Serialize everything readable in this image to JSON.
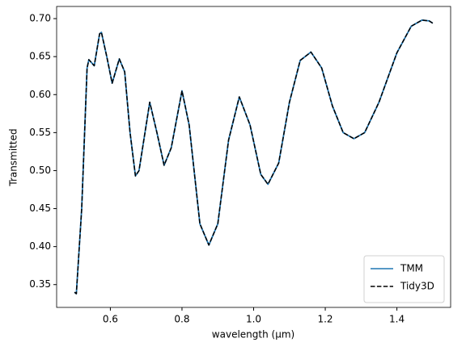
{
  "chart_data": {
    "type": "line",
    "x_label": "wavelength (μm)",
    "y_label": "Transmitted",
    "x": [
      0.5,
      0.505,
      0.52,
      0.535,
      0.54,
      0.555,
      0.57,
      0.575,
      0.59,
      0.605,
      0.625,
      0.64,
      0.655,
      0.67,
      0.68,
      0.71,
      0.73,
      0.75,
      0.77,
      0.8,
      0.82,
      0.85,
      0.875,
      0.9,
      0.93,
      0.96,
      0.99,
      1.02,
      1.04,
      1.07,
      1.1,
      1.13,
      1.16,
      1.19,
      1.22,
      1.25,
      1.28,
      1.31,
      1.35,
      1.4,
      1.44,
      1.47,
      1.49,
      1.5
    ],
    "series": [
      {
        "name": "TMM",
        "color": "#1f77b4",
        "dash": "solid",
        "values": [
          0.34,
          0.338,
          0.45,
          0.635,
          0.646,
          0.638,
          0.68,
          0.682,
          0.65,
          0.615,
          0.647,
          0.63,
          0.55,
          0.493,
          0.5,
          0.59,
          0.55,
          0.507,
          0.53,
          0.605,
          0.56,
          0.43,
          0.402,
          0.43,
          0.54,
          0.597,
          0.56,
          0.495,
          0.482,
          0.51,
          0.59,
          0.645,
          0.656,
          0.635,
          0.585,
          0.55,
          0.542,
          0.55,
          0.59,
          0.655,
          0.69,
          0.698,
          0.697,
          0.694
        ]
      },
      {
        "name": "Tidy3D",
        "color": "#000000",
        "dash": "dashed",
        "values": [
          0.34,
          0.338,
          0.45,
          0.635,
          0.646,
          0.638,
          0.68,
          0.682,
          0.65,
          0.615,
          0.647,
          0.63,
          0.55,
          0.493,
          0.5,
          0.59,
          0.55,
          0.507,
          0.53,
          0.605,
          0.56,
          0.43,
          0.402,
          0.43,
          0.54,
          0.597,
          0.56,
          0.495,
          0.482,
          0.51,
          0.59,
          0.645,
          0.656,
          0.635,
          0.585,
          0.55,
          0.542,
          0.55,
          0.59,
          0.655,
          0.69,
          0.698,
          0.697,
          0.694
        ]
      }
    ],
    "xlim": [
      0.45,
      1.55
    ],
    "ylim": [
      0.32,
      0.716
    ],
    "xticks": [
      0.6,
      0.8,
      {
        "value": 1,
        "label": "1.0"
      },
      1.2,
      1.4
    ],
    "yticks": [
      0.35,
      {
        "value": 0.4,
        "label": "0.40"
      },
      0.45,
      {
        "value": 0.5,
        "label": "0.50"
      },
      0.55,
      {
        "value": 0.6,
        "label": "0.60"
      },
      0.65,
      {
        "value": 0.7,
        "label": "0.70"
      }
    ],
    "grid": false,
    "legend": "lower right"
  }
}
